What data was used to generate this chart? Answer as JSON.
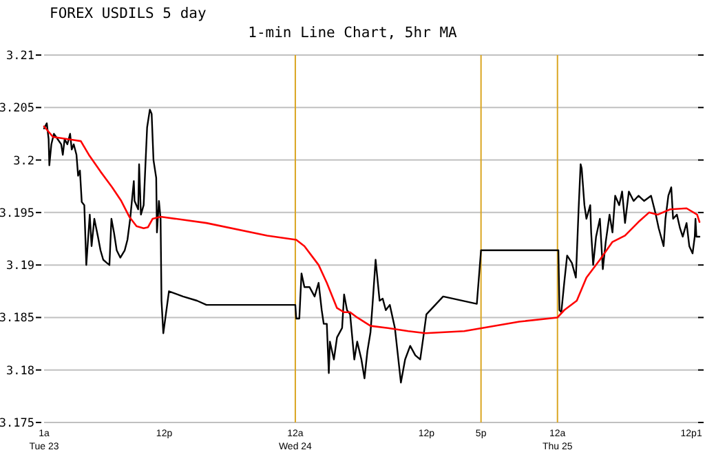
{
  "chart_data": {
    "type": "line",
    "title": "FOREX USDILS 5 day",
    "subtitle": "1-min Line Chart, 5hr MA",
    "xlim": [
      "--12-23T01:00",
      "--12-25T13:00"
    ],
    "xticks": [
      {
        "value": "--12-23T01:00",
        "label": "1a\nTue 23"
      },
      {
        "value": "--12-23T12:00",
        "label": "12p"
      },
      {
        "value": "--12-24T00:00",
        "label": "12a\nWed 24"
      },
      {
        "value": "--12-24T12:00",
        "label": "12p"
      },
      {
        "value": "--12-24T17:00",
        "label": "5p"
      },
      {
        "value": "--12-25T00:00",
        "label": "12a\nThu 25"
      },
      {
        "value": "--12-25T12:00",
        "label": "12p"
      },
      {
        "value": "--12-25T13:00",
        "label": "1"
      }
    ],
    "ylim": [
      3.175,
      3.21
    ],
    "yticks": [
      3.175,
      3.18,
      3.185,
      3.19,
      3.195,
      3.2,
      3.205,
      3.21
    ],
    "grid": "y",
    "ref_lines": [
      {
        "axis": "x",
        "value": "--12-24T00:00",
        "color": "#daa520"
      },
      {
        "axis": "x",
        "value": "--12-24T17:00",
        "color": "#daa520"
      },
      {
        "axis": "x",
        "value": "--12-25T00:00",
        "color": "#daa520"
      }
    ],
    "series": [
      {
        "color": "#000000",
        "x": [
          "--12-23T01:00",
          "--12-23T01:15",
          "--12-23T01:25",
          "--12-23T01:29",
          "--12-23T01:40",
          "--12-23T01:54",
          "--12-23T02:14",
          "--12-23T02:34",
          "--12-23T02:43",
          "--12-23T02:53",
          "--12-23T03:08",
          "--12-23T03:23",
          "--12-23T03:32",
          "--12-23T03:43",
          "--12-23T03:58",
          "--12-23T04:07",
          "--12-23T04:17",
          "--12-23T04:27",
          "--12-23T04:41",
          "--12-23T04:52",
          "--12-23T05:11",
          "--12-23T05:21",
          "--12-23T05:36",
          "--12-23T05:56",
          "--12-23T06:10",
          "--12-23T06:25",
          "--12-23T06:45",
          "--12-23T06:59",
          "--12-23T07:10",
          "--12-23T07:24",
          "--12-23T07:39",
          "--12-23T07:59",
          "--12-23T08:23",
          "--12-23T08:38",
          "--12-23T08:53",
          "--12-23T09:13",
          "--12-23T09:17",
          "--12-23T09:37",
          "--12-23T09:42",
          "--12-23T09:52",
          "--12-23T10:07",
          "--12-23T10:26",
          "--12-23T10:41",
          "--12-23T10:51",
          "--12-23T11:01",
          "--12-23T11:16",
          "--12-23T11:20",
          "--12-23T11:31",
          "--12-23T11:40",
          "--12-23T11:45",
          "--12-23T11:55",
          "--12-23T12:26",
          "--12-23T13:43",
          "--12-23T15:00",
          "--12-23T15:52",
          "--12-24T00:00",
          "--12-24T00:05",
          "--12-24T00:22",
          "--12-24T00:34",
          "--12-24T00:50",
          "--12-24T01:18",
          "--12-24T01:46",
          "--12-24T02:08",
          "--12-24T02:25",
          "--12-24T02:36",
          "--12-24T02:53",
          "--12-24T03:04",
          "--12-24T03:10",
          "--12-24T03:32",
          "--12-24T03:49",
          "--12-24T04:17",
          "--12-24T04:28",
          "--12-24T04:44",
          "--12-24T05:01",
          "--12-24T05:24",
          "--12-24T05:40",
          "--12-24T06:03",
          "--12-24T06:20",
          "--12-24T06:36",
          "--12-24T06:53",
          "--12-24T07:04",
          "--12-24T07:21",
          "--12-24T07:43",
          "--12-24T08:00",
          "--12-24T08:17",
          "--12-24T08:39",
          "--12-24T09:07",
          "--12-24T09:40",
          "--12-24T10:03",
          "--12-24T10:31",
          "--12-24T10:59",
          "--12-24T11:26",
          "--12-24T11:43",
          "--12-24T12:00",
          "--12-24T13:32",
          "--12-24T16:37",
          "--12-24T17:00",
          "--12-25T00:05",
          "--12-25T00:11",
          "--12-25T00:21",
          "--12-25T00:37",
          "--12-25T00:53",
          "--12-25T01:19",
          "--12-25T01:41",
          "--12-25T01:46",
          "--12-25T01:56",
          "--12-25T02:07",
          "--12-25T02:13",
          "--12-25T02:28",
          "--12-25T02:39",
          "--12-25T03:00",
          "--12-25T03:05",
          "--12-25T03:16",
          "--12-25T03:32",
          "--12-25T03:53",
          "--12-25T04:09",
          "--12-25T04:25",
          "--12-25T04:46",
          "--12-25T05:02",
          "--12-25T05:17",
          "--12-25T05:39",
          "--12-25T05:55",
          "--12-25T06:11",
          "--12-25T06:32",
          "--12-25T06:58",
          "--12-25T07:25",
          "--12-25T07:56",
          "--12-25T08:34",
          "--12-25T09:00",
          "--12-25T09:16",
          "--12-25T09:43",
          "--12-25T09:53",
          "--12-25T10:09",
          "--12-25T10:25",
          "--12-25T10:35",
          "--12-25T10:56",
          "--12-25T11:13",
          "--12-25T11:28",
          "--12-25T11:49",
          "--12-25T12:04",
          "--12-25T12:22",
          "--12-25T12:34",
          "--12-25T12:38",
          "--12-25T12:43",
          "--12-25T13:00"
        ],
        "values": [
          3.203,
          3.2035,
          3.202,
          3.1995,
          3.2015,
          3.2025,
          3.202,
          3.2015,
          3.2005,
          3.202,
          3.2015,
          3.2025,
          3.201,
          3.2015,
          3.2005,
          3.1985,
          3.199,
          3.196,
          3.1957,
          3.19,
          3.1948,
          3.1918,
          3.1944,
          3.1927,
          3.1914,
          3.1905,
          3.1902,
          3.19,
          3.1944,
          3.1931,
          3.1914,
          3.1907,
          3.1914,
          3.1924,
          3.1944,
          3.198,
          3.1961,
          3.1953,
          3.1996,
          3.1948,
          3.1957,
          3.2031,
          3.2048,
          3.2044,
          3.2,
          3.1983,
          3.1931,
          3.1961,
          3.1944,
          3.1866,
          3.1835,
          3.1875,
          3.187,
          3.1866,
          3.1862,
          3.1862,
          3.1849,
          3.1849,
          3.1892,
          3.1879,
          3.1879,
          3.187,
          3.1883,
          3.1857,
          3.1844,
          3.1844,
          3.1797,
          3.1827,
          3.181,
          3.1831,
          3.184,
          3.1872,
          3.1857,
          3.1853,
          3.181,
          3.1827,
          3.181,
          3.1792,
          3.1818,
          3.1836,
          3.1862,
          3.1905,
          3.1866,
          3.1868,
          3.1857,
          3.1862,
          3.184,
          3.1788,
          3.181,
          3.1823,
          3.1814,
          3.181,
          3.1831,
          3.1853,
          3.187,
          3.1863,
          3.1914,
          3.1914,
          3.1857,
          3.1855,
          3.1883,
          3.1909,
          3.1902,
          3.1888,
          3.1909,
          3.1953,
          3.1996,
          3.1992,
          3.1957,
          3.1944,
          3.1957,
          3.1931,
          3.19,
          3.1927,
          3.1944,
          3.1896,
          3.1922,
          3.1948,
          3.1931,
          3.1966,
          3.1957,
          3.197,
          3.194,
          3.197,
          3.1961,
          3.1966,
          3.1961,
          3.1966,
          3.1948,
          3.1935,
          3.1918,
          3.1944,
          3.1966,
          3.1974,
          3.1944,
          3.1948,
          3.1935,
          3.1927,
          3.194,
          3.1918,
          3.1911,
          3.1927,
          3.1944,
          3.1927,
          3.1927
        ]
      },
      {
        "color": "#ff0000",
        "x": [
          "--12-23T01:00",
          "--12-23T01:49",
          "--12-23T03:43",
          "--12-23T04:22",
          "--12-23T05:06",
          "--12-23T06:10",
          "--12-23T07:14",
          "--12-23T08:04",
          "--12-23T08:48",
          "--12-23T09:28",
          "--12-23T10:07",
          "--12-23T10:31",
          "--12-23T10:56",
          "--12-23T11:40",
          "--12-23T15:52",
          "--12-23T21:26",
          "--12-24T00:05",
          "--12-24T00:50",
          "--12-24T02:08",
          "--12-24T02:53",
          "--12-24T03:49",
          "--12-24T04:28",
          "--12-24T05:01",
          "--12-24T05:40",
          "--12-24T06:53",
          "--12-24T08:28",
          "--12-24T10:20",
          "--12-24T11:55",
          "--12-24T15:28",
          "--12-24T20:30",
          "--12-25T00:00",
          "--12-25T00:37",
          "--12-25T01:46",
          "--12-25T02:39",
          "--12-25T03:53",
          "--12-25T05:02",
          "--12-25T06:11",
          "--12-25T07:25",
          "--12-25T08:23",
          "--12-25T09:11",
          "--12-25T10:19",
          "--12-25T11:49",
          "--12-25T12:47",
          "--12-25T13:00"
        ],
        "values": [
          3.2032,
          3.2022,
          3.2019,
          3.2018,
          3.2005,
          3.1989,
          3.1974,
          3.1961,
          3.1946,
          3.1937,
          3.1935,
          3.1936,
          3.1944,
          3.1946,
          3.194,
          3.1928,
          3.1924,
          3.1918,
          3.19,
          3.1883,
          3.1859,
          3.1855,
          3.1855,
          3.185,
          3.1842,
          3.184,
          3.1837,
          3.1835,
          3.1837,
          3.1846,
          3.185,
          3.1857,
          3.1866,
          3.1888,
          3.1905,
          3.1922,
          3.1928,
          3.1941,
          3.195,
          3.1948,
          3.1953,
          3.1954,
          3.1948,
          3.1941
        ]
      }
    ]
  }
}
